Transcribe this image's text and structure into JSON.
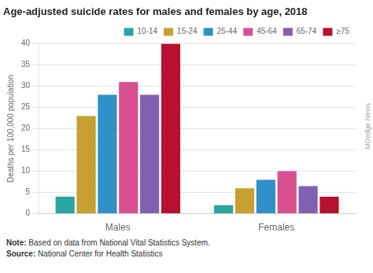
{
  "chart_data": {
    "type": "bar",
    "title": "Age-adjusted suicide rates for males and females by age, 2018",
    "ylabel": "Deaths per 100,000 population",
    "categories": [
      "Males",
      "Females"
    ],
    "series": [
      {
        "name": "10-14",
        "color": "#2aa5a0",
        "values": [
          4,
          2
        ]
      },
      {
        "name": "15-24",
        "color": "#c8a030",
        "values": [
          23,
          6
        ]
      },
      {
        "name": "25-44",
        "color": "#3090c8",
        "values": [
          28,
          8
        ]
      },
      {
        "name": "45-64",
        "color": "#d85090",
        "values": [
          31,
          10
        ]
      },
      {
        "name": "65-74",
        "color": "#8060b0",
        "values": [
          28,
          6.5
        ]
      },
      {
        "name": "≥75",
        "color": "#b81030",
        "values": [
          40,
          4
        ]
      }
    ],
    "ylim": [
      0,
      40
    ],
    "yticks": [
      0,
      5,
      10,
      15,
      20,
      25,
      30,
      35,
      40
    ],
    "grid": true,
    "legend": "upper right",
    "annotations": [
      "Note: Based on data from National Vital Statistics System.",
      "Source: National Center for Health Statistics"
    ],
    "watermark": "MDedge News"
  }
}
